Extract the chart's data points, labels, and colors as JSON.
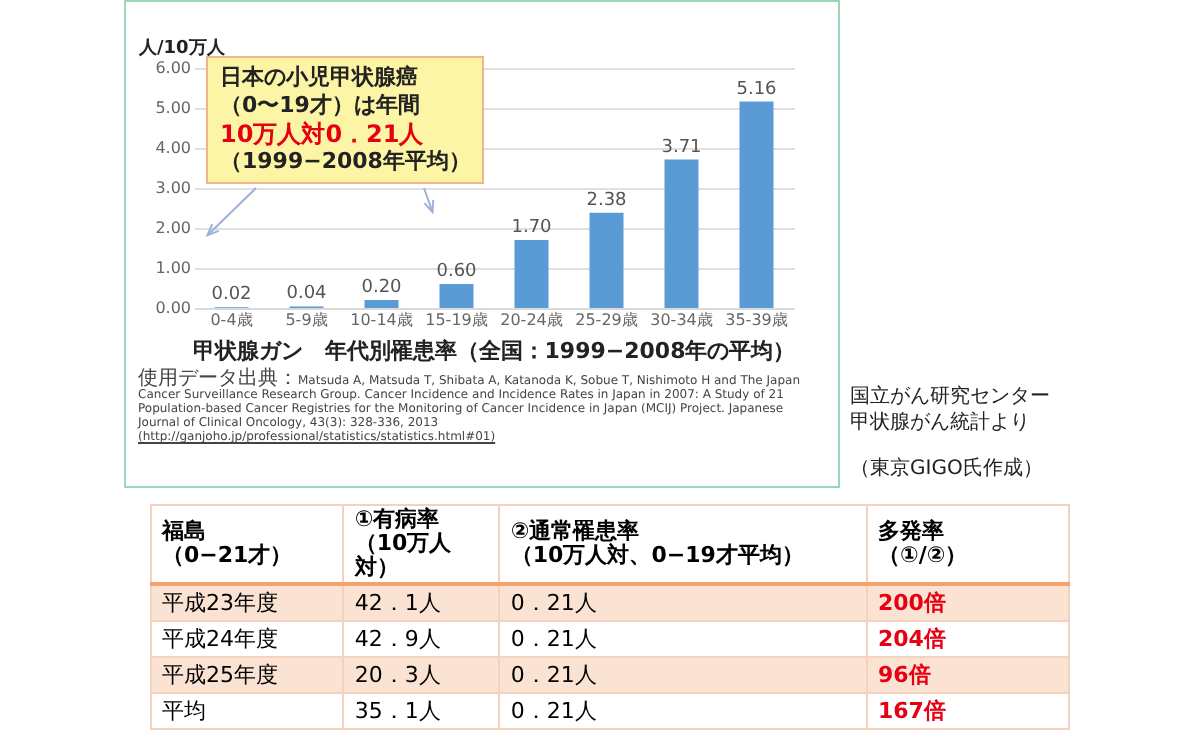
{
  "chart_data": [
    {
      "type": "bar",
      "title": "甲状腺ガン　年代別罹患率（全国：1999−2008年の平均）",
      "ylabel": "人/10万人",
      "categories": [
        "0-4歳",
        "5-9歳",
        "10-14歳",
        "15-19歳",
        "20-24歳",
        "25-29歳",
        "30-34歳",
        "35-39歳"
      ],
      "values": [
        0.02,
        0.04,
        0.2,
        0.6,
        1.7,
        2.38,
        3.71,
        5.16
      ],
      "value_labels": [
        "0.02",
        "0.04",
        "0.20",
        "0.60",
        "1.70",
        "2.38",
        "3.71",
        "5.16"
      ],
      "color": "#5b9bd5",
      "ylim": [
        0,
        6
      ],
      "yticks": [
        {
          "value": 0,
          "label": "0.00"
        },
        {
          "value": 1,
          "label": "1.00"
        },
        {
          "value": 2,
          "label": "2.00"
        },
        {
          "value": 3,
          "label": "3.00"
        },
        {
          "value": 4,
          "label": "4.00"
        },
        {
          "value": 5,
          "label": "5.00"
        },
        {
          "value": 6,
          "label": "6.00"
        }
      ],
      "grid": "y",
      "annotations": [
        "日本の小児甲状腺癌",
        "（0〜19才）は年間",
        "10万人対0．21人",
        "（1999−2008年平均）",
        "使用データ出典：",
        "Matsuda A, Matsuda T, Shibata A, Katanoda K, Sobue T, Nishimoto H and The Japan Cancer Surveillance Research Group. Cancer Incidence and Incidence Rates in Japan in 2007: A Study of 21 Population-based Cancer Registries for the Monitoring of Cancer Incidence in Japan (MCIJ) Project. Japanese Journal of Clinical Oncology, 43(3): 328-336, 2013",
        "(http://ganjoho.jp/professional/statistics/statistics.html#01)",
        "国立がん研究センター",
        "甲状腺がん統計より",
        "（東京GIGO氏作成）"
      ]
    },
    {
      "type": "other",
      "annotations": [
        "福島（0−21才）",
        "①有病率（10万人対）",
        "②通常罹患率（10万人対、0−19才平均）",
        "多発率（①/②）",
        "平成23年度",
        "42．1人",
        "0．21人",
        "200倍",
        "平成24年度",
        "42．9人",
        "0．21人",
        "204倍",
        "平成25年度",
        "20．3人",
        "0．21人",
        "96倍",
        "平均",
        "35．1人",
        "0．21人",
        "167倍"
      ]
    }
  ]
}
